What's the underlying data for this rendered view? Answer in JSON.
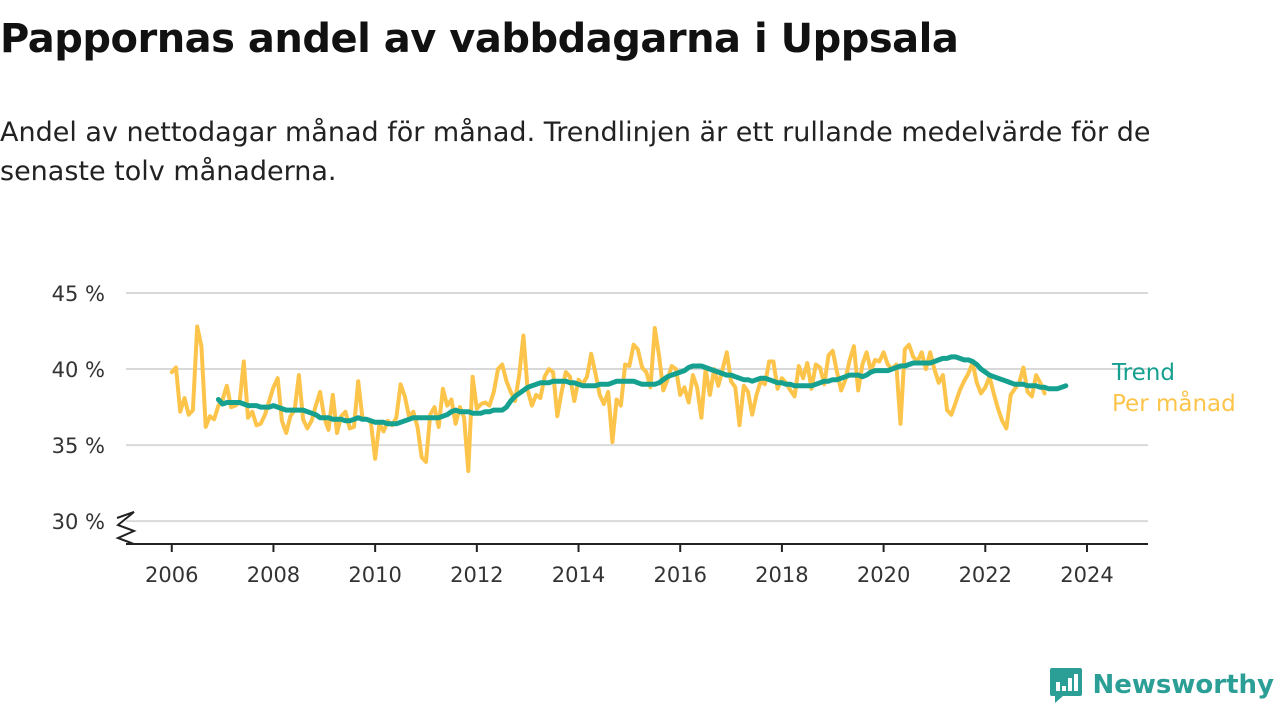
{
  "title": "Pappornas andel av vabbdagarna i Uppsala",
  "subtitle": "Andel av nettodagar månad för månad. Trendlinjen är ett rullande medelvärde för de senaste tolv månaderna.",
  "brand": {
    "name": "Newsworthy"
  },
  "colors": {
    "trend": "#15a090",
    "monthly": "#fcc44a",
    "grid": "#d9d9d9",
    "axis": "#222222"
  },
  "chart_data": {
    "type": "line",
    "xlim": [
      2005.1,
      2025.2
    ],
    "ylim": [
      28.5,
      45
    ],
    "y_break": true,
    "y_ticks": [
      30,
      35,
      40,
      45
    ],
    "y_tick_labels": [
      "30 %",
      "35 %",
      "40 %",
      "45 %"
    ],
    "x_ticks": [
      2006,
      2008,
      2010,
      2012,
      2014,
      2016,
      2018,
      2020,
      2022,
      2024
    ],
    "x_tick_labels": [
      "2006",
      "2008",
      "2010",
      "2012",
      "2014",
      "2016",
      "2018",
      "2020",
      "2022",
      "2024"
    ],
    "series": [
      {
        "name": "Per månad",
        "label": "Per månad",
        "x_start": 2006.0,
        "step": 0.08333,
        "values": [
          39.8,
          40.1,
          37.2,
          38.1,
          37.0,
          37.3,
          42.8,
          41.5,
          36.2,
          36.9,
          36.7,
          37.6,
          38.0,
          38.9,
          37.5,
          37.6,
          37.8,
          40.5,
          36.8,
          37.2,
          36.3,
          36.4,
          37.0,
          37.9,
          38.8,
          39.4,
          36.6,
          35.8,
          36.9,
          37.3,
          39.6,
          36.7,
          36.1,
          36.6,
          37.6,
          38.5,
          36.8,
          36.0,
          38.3,
          35.8,
          36.9,
          37.2,
          36.1,
          36.2,
          39.2,
          36.8,
          36.7,
          36.5,
          34.1,
          36.4,
          35.9,
          36.6,
          36.3,
          36.8,
          39.0,
          38.2,
          36.9,
          37.2,
          36.2,
          34.2,
          33.9,
          37.0,
          37.5,
          36.2,
          38.7,
          37.6,
          38.0,
          36.4,
          37.5,
          36.8,
          33.3,
          39.5,
          37.4,
          37.7,
          37.8,
          37.6,
          38.5,
          40.0,
          40.3,
          39.2,
          38.5,
          37.9,
          39.6,
          42.2,
          38.6,
          37.6,
          38.3,
          38.1,
          39.5,
          40.0,
          39.8,
          36.9,
          38.5,
          39.8,
          39.5,
          37.9,
          39.3,
          39.0,
          39.5,
          41.0,
          39.7,
          38.3,
          37.7,
          38.5,
          35.2,
          38.0,
          37.6,
          40.3,
          40.2,
          41.6,
          41.3,
          40.1,
          39.8,
          38.8,
          42.7,
          40.9,
          38.6,
          39.3,
          40.2,
          40.0,
          38.3,
          38.8,
          37.8,
          39.6,
          38.8,
          36.8,
          40.0,
          38.3,
          40.0,
          38.9,
          40.0,
          41.1,
          39.2,
          38.8,
          36.3,
          38.9,
          38.5,
          37.0,
          38.3,
          39.2,
          39.0,
          40.5,
          40.5,
          38.7,
          39.4,
          39.1,
          38.6,
          38.2,
          40.2,
          39.4,
          40.4,
          38.7,
          40.3,
          40.1,
          39.0,
          40.9,
          41.2,
          39.8,
          38.6,
          39.3,
          40.6,
          41.5,
          38.6,
          40.3,
          41.1,
          39.9,
          40.6,
          40.5,
          41.1,
          40.3,
          40.0,
          40.3,
          36.4,
          41.3,
          41.6,
          40.8,
          40.5,
          41.1,
          40.0,
          41.1,
          40.0,
          39.1,
          39.6,
          37.3,
          37.0,
          37.8,
          38.6,
          39.2,
          39.7,
          40.4,
          39.1,
          38.4,
          38.8,
          39.5,
          38.4,
          37.4,
          36.6,
          36.1,
          38.3,
          38.7,
          39.1,
          40.1,
          38.5,
          38.2,
          39.6,
          39.1,
          38.4
        ]
      },
      {
        "name": "Trend",
        "label": "Trend",
        "x_start": 2006.917,
        "step": 0.08333,
        "values": [
          38.0,
          37.7,
          37.8,
          37.8,
          37.8,
          37.8,
          37.7,
          37.6,
          37.6,
          37.6,
          37.5,
          37.5,
          37.5,
          37.6,
          37.5,
          37.4,
          37.3,
          37.3,
          37.3,
          37.3,
          37.3,
          37.2,
          37.1,
          37.0,
          36.8,
          36.8,
          36.8,
          36.7,
          36.7,
          36.7,
          36.6,
          36.6,
          36.7,
          36.8,
          36.7,
          36.7,
          36.6,
          36.5,
          36.5,
          36.5,
          36.4,
          36.4,
          36.4,
          36.5,
          36.6,
          36.7,
          36.8,
          36.8,
          36.8,
          36.8,
          36.8,
          36.8,
          36.8,
          36.9,
          37.0,
          37.2,
          37.3,
          37.2,
          37.2,
          37.2,
          37.1,
          37.1,
          37.1,
          37.2,
          37.2,
          37.3,
          37.3,
          37.3,
          37.5,
          37.9,
          38.2,
          38.4,
          38.6,
          38.8,
          38.9,
          39.0,
          39.1,
          39.1,
          39.1,
          39.2,
          39.2,
          39.2,
          39.2,
          39.1,
          39.1,
          39.0,
          38.9,
          38.9,
          38.9,
          38.9,
          39.0,
          39.0,
          39.0,
          39.1,
          39.2,
          39.2,
          39.2,
          39.2,
          39.2,
          39.1,
          39.0,
          39.0,
          39.0,
          39.0,
          39.1,
          39.3,
          39.5,
          39.6,
          39.7,
          39.8,
          39.9,
          40.1,
          40.2,
          40.2,
          40.2,
          40.1,
          40.0,
          39.9,
          39.8,
          39.7,
          39.6,
          39.6,
          39.5,
          39.4,
          39.3,
          39.3,
          39.2,
          39.3,
          39.4,
          39.4,
          39.3,
          39.2,
          39.1,
          39.1,
          39.0,
          39.0,
          38.9,
          38.9,
          38.9,
          38.9,
          38.9,
          39.0,
          39.1,
          39.2,
          39.2,
          39.3,
          39.3,
          39.4,
          39.5,
          39.6,
          39.6,
          39.6,
          39.5,
          39.6,
          39.8,
          39.9,
          39.9,
          39.9,
          39.9,
          40.0,
          40.1,
          40.2,
          40.2,
          40.3,
          40.4,
          40.4,
          40.4,
          40.4,
          40.4,
          40.5,
          40.6,
          40.7,
          40.7,
          40.8,
          40.8,
          40.7,
          40.6,
          40.6,
          40.5,
          40.3,
          40.0,
          39.8,
          39.6,
          39.5,
          39.4,
          39.3,
          39.2,
          39.1,
          39.0,
          39.0,
          39.0,
          38.9,
          38.9,
          38.9,
          38.8,
          38.8,
          38.7,
          38.7,
          38.7,
          38.8,
          38.9
        ]
      }
    ]
  }
}
